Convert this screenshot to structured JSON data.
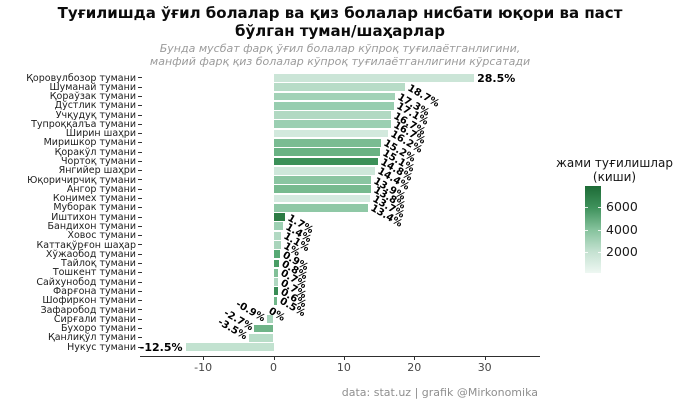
{
  "title": "Туғилишда ўғил болалар ва қиз болалар нисбати юқори ва  паст бўлган туман/шаҳарлар",
  "subtitle": {
    "line1": "Бунда мусбат фарқ ўғил болалар кўпроқ туғилаётганлигини,",
    "line2": "манфий фарқ қиз болалар кўпроқ туғилаётганлигини кўрсатади"
  },
  "caption": "data: stat.uz | grafik @Mirkonomika",
  "legend": {
    "title_line1": "жами туғилишлар",
    "title_line2": "(киши)",
    "tick_labels": [
      "6000",
      "4000",
      "2000"
    ],
    "gradient_stops": [
      "#1d6b36",
      "#3f925c",
      "#85c29c",
      "#c3e1d0",
      "#eef7f2"
    ]
  },
  "x_axis": {
    "tick_values": [
      -10,
      0,
      10,
      20,
      30
    ],
    "tick_labels": [
      "-10",
      "0",
      "10",
      "20",
      "30"
    ]
  },
  "chart_data": {
    "type": "bar",
    "orientation": "horizontal",
    "title": "Туғилишда ўғил болалар ва қиз болалар нисбати юқори ва паст бўлган туман/шаҳарлар",
    "xlabel": "",
    "ylabel": "",
    "xlim": [
      -19,
      38
    ],
    "grid": false,
    "color_encoding_legend": "жами туғилишлар (киши)",
    "color_scale_ticks": [
      2000,
      4000,
      6000
    ],
    "bars": [
      {
        "label": "Қоровулбозор тумани",
        "value": 28.5,
        "value_label": "28.5%",
        "color": "#cbe5d7",
        "angle": 0
      },
      {
        "label": "Шуманай тумани",
        "value": 18.7,
        "value_label": "18.7%",
        "color": "#b7dcc7",
        "angle": 30
      },
      {
        "label": "Қораўзак тумани",
        "value": 17.3,
        "value_label": "17.3%",
        "color": "#a2d2b7",
        "angle": 30
      },
      {
        "label": "Дўстлик тумани",
        "value": 17.1,
        "value_label": "17.1%",
        "color": "#97cdaf",
        "angle": 30
      },
      {
        "label": "Учқудуқ тумани",
        "value": 16.7,
        "value_label": "16.7%",
        "color": "#b1d9c2",
        "angle": 30
      },
      {
        "label": "Тупроққалъа тумани",
        "value": 16.7,
        "value_label": "16.7%",
        "color": "#9bcfb2",
        "angle": 30
      },
      {
        "label": "Ширин шаҳри",
        "value": 16.2,
        "value_label": "16.2%",
        "color": "#d2e9dd",
        "angle": 30
      },
      {
        "label": "Миришкор тумани",
        "value": 15.2,
        "value_label": "15.2%",
        "color": "#7abc92",
        "angle": 30
      },
      {
        "label": "Қоракўл тумани",
        "value": 15.1,
        "value_label": "15.1%",
        "color": "#69b283",
        "angle": 30
      },
      {
        "label": "Чортоқ тумани",
        "value": 14.8,
        "value_label": "14.8%",
        "color": "#3b9058",
        "angle": 30
      },
      {
        "label": "Янгийер шаҳри",
        "value": 14.4,
        "value_label": "14.4%",
        "color": "#cee7da",
        "angle": 30
      },
      {
        "label": "Юқоричирчиқ тумани",
        "value": 13.9,
        "value_label": "13.9%",
        "color": "#8ac5a1",
        "angle": 30
      },
      {
        "label": "Ангор тумани",
        "value": 13.8,
        "value_label": "13.8%",
        "color": "#77ba8f",
        "angle": 30
      },
      {
        "label": "Конимех тумани",
        "value": 13.7,
        "value_label": "13.7%",
        "color": "#d5eae0",
        "angle": 30
      },
      {
        "label": "Муборак тумани",
        "value": 13.4,
        "value_label": "13.4%",
        "color": "#8fc8a6",
        "angle": 30
      },
      {
        "label": "Иштихон тумани",
        "value": 1.7,
        "value_label": "1.7%",
        "color": "#2c7b44",
        "angle": 30
      },
      {
        "label": "Бандихон тумани",
        "value": 1.4,
        "value_label": "1.4%",
        "color": "#9dd0b3",
        "angle": 30
      },
      {
        "label": "Ховос тумани",
        "value": 1.1,
        "value_label": "1.1%",
        "color": "#b2d9c3",
        "angle": 30
      },
      {
        "label": "Каттақўрғон шаҳар",
        "value": 1.0,
        "value_label": "1%",
        "color": "#aad5bc",
        "angle": 30
      },
      {
        "label": "Хўжаобод тумани",
        "value": 0.9,
        "value_label": "0.9%",
        "color": "#57a974",
        "angle": 30
      },
      {
        "label": "Тайлоқ тумани",
        "value": 0.8,
        "value_label": "0.8%",
        "color": "#499d65",
        "angle": 30
      },
      {
        "label": "Тошкент тумани",
        "value": 0.7,
        "value_label": "0.7%",
        "color": "#82c098",
        "angle": 30
      },
      {
        "label": "Сайхунобод тумани",
        "value": 0.7,
        "value_label": "0.7%",
        "color": "#afd7c0",
        "angle": 30
      },
      {
        "label": "Фарғона тумани",
        "value": 0.6,
        "value_label": "0.6%",
        "color": "#398c55",
        "angle": 30
      },
      {
        "label": "Шофиркон тумани",
        "value": 0.5,
        "value_label": "0.5%",
        "color": "#70b689",
        "angle": 30
      },
      {
        "label": "Зафаробод тумани",
        "value": 0,
        "value_label": "0%",
        "color": "#9ccfb3",
        "angle": 30
      },
      {
        "label": "Сирғали тумани",
        "value": -0.9,
        "value_label": "-0.9%",
        "color": "#a6d3ba",
        "angle": 30
      },
      {
        "label": "Бухоро тумани",
        "value": -2.7,
        "value_label": "-2.7%",
        "color": "#6fb488",
        "angle": 30
      },
      {
        "label": "Қанлиқўл тумани",
        "value": -3.5,
        "value_label": "-3.5%",
        "color": "#b8ddc8",
        "angle": 30
      },
      {
        "label": "Нукус тумани",
        "value": -12.5,
        "value_label": "-12.5%",
        "color": "#c2e2d0",
        "angle": 0
      }
    ]
  }
}
